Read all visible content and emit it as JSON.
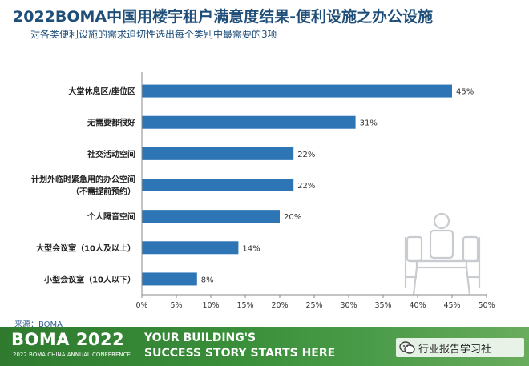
{
  "title": "2022BOMA中国用楼宇租户满意度结果-便利设施之办公设施",
  "subtitle": "对各类便利设施的需求迫切性选出每个类别中最需要的3项",
  "source": "来源：BOMA",
  "chart_data": {
    "type": "bar",
    "orientation": "horizontal",
    "categories": [
      [
        "大堂休息区/座位区"
      ],
      [
        "无需要都很好"
      ],
      [
        "社交活动空间"
      ],
      [
        "计划外临时紧急用的办公空间",
        "（不需提前预约）"
      ],
      [
        "个人隔音空间"
      ],
      [
        "大型会议室（10人及以上）"
      ],
      [
        "小型会议室（10人以下）"
      ]
    ],
    "values": [
      45,
      31,
      22,
      22,
      20,
      14,
      8
    ],
    "value_labels": [
      "45%",
      "31%",
      "22%",
      "22%",
      "20%",
      "14%",
      "8%"
    ],
    "xlim": [
      0,
      50
    ],
    "x_ticks": [
      0,
      5,
      10,
      15,
      20,
      25,
      30,
      35,
      40,
      45,
      50
    ],
    "x_tick_labels": [
      "0%",
      "5%",
      "10%",
      "15%",
      "20%",
      "25%",
      "30%",
      "35%",
      "40%",
      "45%",
      "50%"
    ],
    "bar_color": "#2e75b6",
    "grid": false
  },
  "footer": {
    "logo": "BOMA 2022",
    "logo_sub": "2022 BOMA CHINA ANNUAL CONFERENCE",
    "tagline_1": "YOUR BUILDING'S",
    "tagline_2": "SUCCESS STORY STARTS HERE",
    "wechat_label": "行业报告学习社"
  },
  "colors": {
    "title": "#1f4e79",
    "footer_green": "#3a8f3a"
  },
  "icons": [
    "meeting-people-icon",
    "wechat-icon"
  ]
}
